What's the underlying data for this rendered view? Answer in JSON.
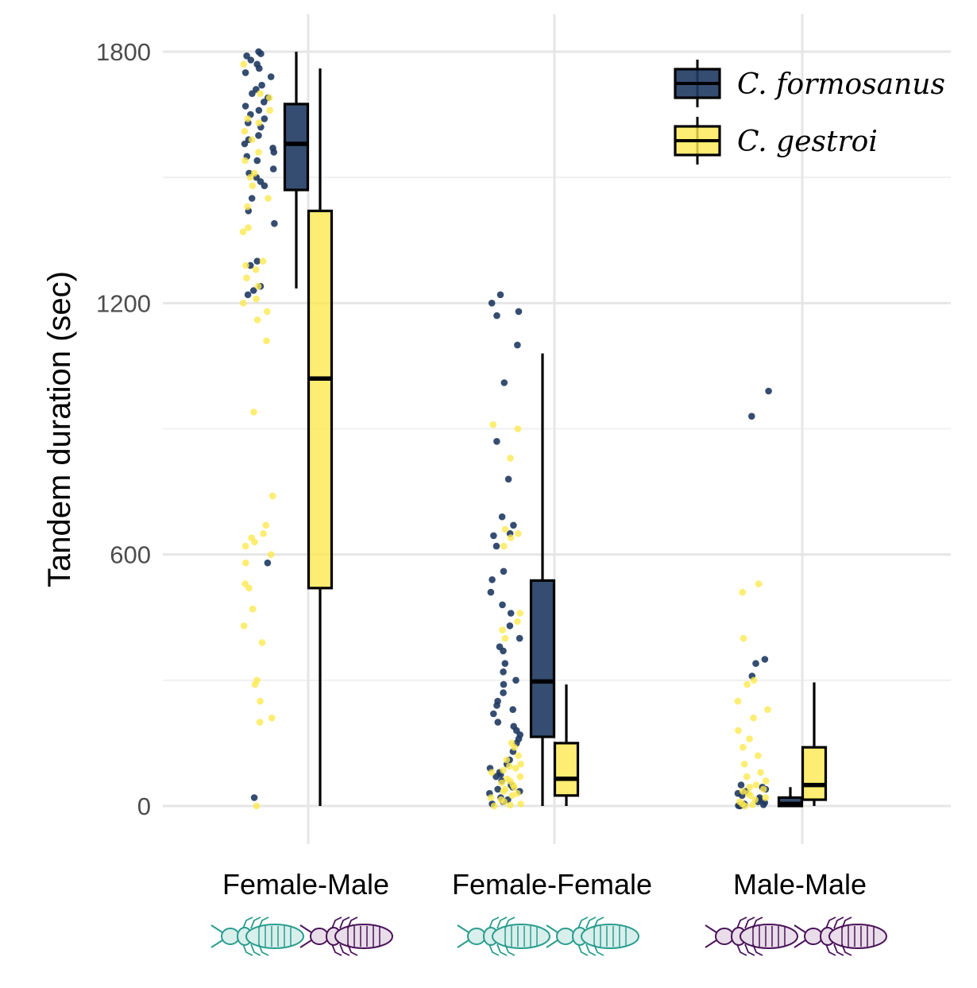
{
  "chart_data": {
    "type": "box",
    "ylabel": "Tandem duration (sec)",
    "xlabel": "",
    "ylim": [
      -90,
      1890
    ],
    "yticks": [
      0,
      600,
      1200,
      1800
    ],
    "grid": true,
    "legend_position": "top-right",
    "categories": [
      "Female-Male",
      "Female-Female",
      "Male-Male"
    ],
    "series": [
      {
        "name": "C. formosanus",
        "color": "#1f3a62",
        "boxes": [
          {
            "q1": 1470,
            "median": 1580,
            "q3": 1675,
            "whisker_low": 1235,
            "whisker_high": 1800
          },
          {
            "q1": 165,
            "median": 297,
            "q3": 538,
            "whisker_low": 0,
            "whisker_high": 1080
          },
          {
            "q1": 0,
            "median": 5,
            "q3": 20,
            "whisker_low": 0,
            "whisker_high": 45
          }
        ],
        "points": [
          [
            1800,
            1795,
            1790,
            1780,
            1770,
            1760,
            1750,
            1740,
            1720,
            1710,
            1700,
            1690,
            1680,
            1670,
            1660,
            1650,
            1640,
            1630,
            1620,
            1600,
            1590,
            1580,
            1570,
            1560,
            1550,
            1540,
            1520,
            1510,
            1500,
            1490,
            1480,
            1450,
            1420,
            1390,
            1300,
            1290,
            1240,
            1230,
            1220,
            580,
            20
          ],
          [
            1220,
            1200,
            1180,
            1170,
            1100,
            1010,
            870,
            780,
            690,
            670,
            650,
            645,
            620,
            560,
            540,
            510,
            480,
            460,
            430,
            400,
            380,
            370,
            340,
            320,
            300,
            290,
            270,
            250,
            240,
            230,
            220,
            200,
            190,
            180,
            170,
            160,
            150,
            130,
            110,
            100,
            90,
            80,
            75,
            70,
            60,
            50,
            45,
            40,
            35,
            30,
            20,
            15,
            10,
            5
          ],
          [
            990,
            930,
            350,
            340,
            310,
            50,
            45,
            40,
            35,
            30,
            25,
            20,
            15,
            10,
            8,
            5,
            3,
            2,
            1,
            0
          ]
        ]
      },
      {
        "name": "C. gestroi",
        "color": "#fde84f",
        "boxes": [
          {
            "q1": 520,
            "median": 1020,
            "q3": 1420,
            "whisker_low": 0,
            "whisker_high": 1760
          },
          {
            "q1": 25,
            "median": 65,
            "q3": 150,
            "whisker_low": 0,
            "whisker_high": 290
          },
          {
            "q1": 15,
            "median": 50,
            "q3": 140,
            "whisker_low": 0,
            "whisker_high": 295
          }
        ],
        "points": [
          [
            1770,
            1700,
            1690,
            1660,
            1640,
            1630,
            1610,
            1590,
            1560,
            1540,
            1510,
            1500,
            1480,
            1450,
            1430,
            1380,
            1370,
            1300,
            1290,
            1280,
            1260,
            1240,
            1210,
            1200,
            1180,
            1160,
            1110,
            940,
            740,
            670,
            650,
            640,
            630,
            620,
            600,
            580,
            530,
            520,
            470,
            430,
            390,
            300,
            290,
            250,
            210,
            200,
            0
          ],
          [
            910,
            900,
            830,
            660,
            650,
            640,
            620,
            460,
            440,
            420,
            400,
            150,
            140,
            120,
            110,
            100,
            95,
            90,
            85,
            80,
            70,
            65,
            60,
            55,
            50,
            45,
            40,
            35,
            30,
            25,
            20,
            15,
            10,
            5,
            2,
            0
          ],
          [
            530,
            510,
            400,
            300,
            290,
            250,
            230,
            210,
            180,
            160,
            140,
            120,
            100,
            80,
            70,
            60,
            50,
            45,
            40,
            35,
            30,
            25,
            20,
            15,
            10,
            5,
            3,
            0
          ]
        ]
      }
    ],
    "icons": [
      [
        "female-termite-icon",
        "male-termite-icon"
      ],
      [
        "female-termite-icon",
        "female-termite-icon"
      ],
      [
        "male-termite-icon",
        "male-termite-icon"
      ]
    ],
    "icon_colors": {
      "female": "#2a9d8f",
      "female_fill": "#d8efec",
      "male": "#4a1259",
      "male_fill": "#e8dde9"
    }
  }
}
